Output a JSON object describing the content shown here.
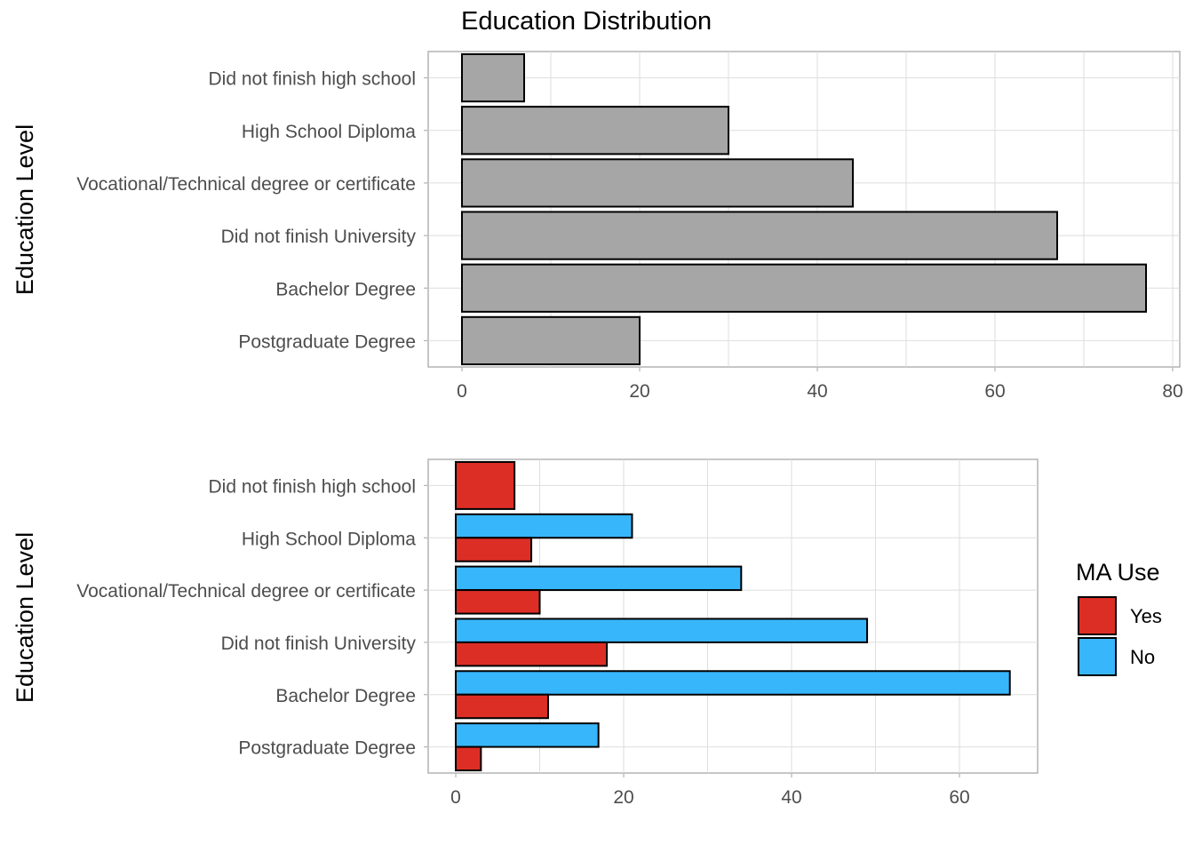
{
  "chart_data": [
    {
      "type": "bar",
      "orientation": "horizontal",
      "title": "Education Distribution",
      "xlabel": "",
      "ylabel": "Education Level",
      "categories": [
        "Did not finish high school",
        "High School Diploma",
        "Vocational/Technical degree or certificate",
        "Did not finish University",
        "Bachelor Degree",
        "Postgraduate Degree"
      ],
      "values": [
        7,
        30,
        44,
        67,
        77,
        20
      ],
      "xlim": [
        0,
        80
      ],
      "xticks": [
        0,
        20,
        40,
        60,
        80
      ],
      "bar_color": "#a6a6a6",
      "grid": true,
      "legend": false
    },
    {
      "type": "bar",
      "orientation": "horizontal",
      "grouped": true,
      "title": "",
      "xlabel": "",
      "ylabel": "Education Level",
      "categories": [
        "Did not finish high school",
        "High School Diploma",
        "Vocational/Technical degree or certificate",
        "Did not finish University",
        "Bachelor Degree",
        "Postgraduate Degree"
      ],
      "series": [
        {
          "name": "Yes",
          "color": "#dd2e26",
          "values": [
            7,
            9,
            10,
            18,
            11,
            3
          ]
        },
        {
          "name": "No",
          "color": "#38b6fc",
          "values": [
            null,
            21,
            34,
            49,
            66,
            17
          ]
        }
      ],
      "xlim": [
        0,
        70
      ],
      "xticks": [
        0,
        20,
        40,
        60
      ],
      "grid": true,
      "legend_title": "MA Use",
      "legend_position": "right"
    }
  ]
}
